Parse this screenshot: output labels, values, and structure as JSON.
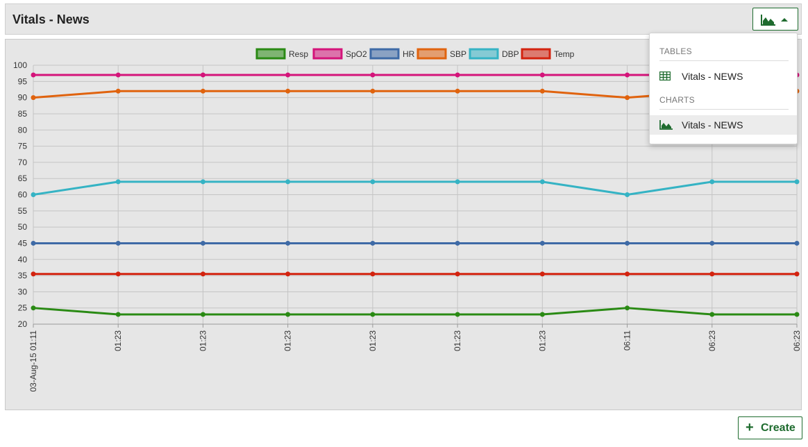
{
  "panel": {
    "title": "Vitals - News"
  },
  "menu": {
    "sections": [
      {
        "header": "TABLES",
        "items": [
          {
            "label": "Vitals - NEWS",
            "icon": "table-icon"
          }
        ]
      },
      {
        "header": "CHARTS",
        "items": [
          {
            "label": "Vitals - NEWS",
            "icon": "area-chart-icon"
          }
        ]
      }
    ]
  },
  "create_button": {
    "label": "Create",
    "icon": "plus-icon"
  },
  "colors": {
    "accent": "#1e6b2e",
    "panel_bg": "#e6e6e6"
  },
  "chart_data": {
    "type": "line",
    "legend_position": "top-center",
    "grid": true,
    "ylim": [
      20,
      100
    ],
    "yticks": [
      20,
      25,
      30,
      35,
      40,
      45,
      50,
      55,
      60,
      65,
      70,
      75,
      80,
      85,
      90,
      95,
      100
    ],
    "x": [
      "03-Aug-15 01:11",
      "01:23",
      "01:23",
      "01:23",
      "01:23",
      "01:23",
      "01:23",
      "06:11",
      "06:23",
      "06:23"
    ],
    "series": [
      {
        "name": "Resp",
        "color": "#2a8a14",
        "values": [
          25,
          23,
          23,
          23,
          23,
          23,
          23,
          25,
          23,
          23
        ]
      },
      {
        "name": "SpO2",
        "color": "#d4147a",
        "values": [
          97,
          97,
          97,
          97,
          97,
          97,
          97,
          97,
          97,
          97
        ]
      },
      {
        "name": "HR",
        "color": "#3e6aa6",
        "values": [
          45,
          45,
          45,
          45,
          45,
          45,
          45,
          45,
          45,
          45
        ]
      },
      {
        "name": "SBP",
        "color": "#e0630e",
        "values": [
          90,
          92,
          92,
          92,
          92,
          92,
          92,
          90,
          92,
          92
        ]
      },
      {
        "name": "DBP",
        "color": "#35b3c4",
        "values": [
          60,
          64,
          64,
          64,
          64,
          64,
          64,
          60,
          64,
          64
        ]
      },
      {
        "name": "Temp",
        "color": "#d3230f",
        "values": [
          35.5,
          35.5,
          35.5,
          35.5,
          35.5,
          35.5,
          35.5,
          35.5,
          35.5,
          35.5
        ]
      }
    ]
  }
}
